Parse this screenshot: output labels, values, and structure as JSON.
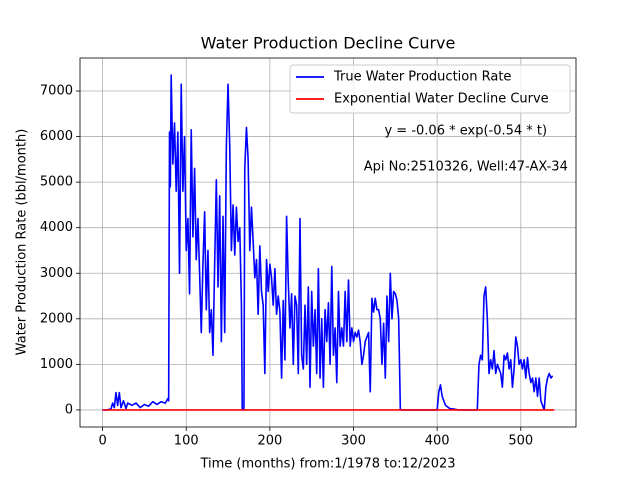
{
  "chart_data": {
    "type": "line",
    "title": "Water Production Decline Curve",
    "xlabel": "Time (months) from:1/1978 to:12/2023",
    "ylabel": "Water Production Rate (bbl/month)",
    "annotations": [
      "y = -0.06 * exp(-0.54 * t)",
      "Api No:2510326, Well:47-AX-34"
    ],
    "xlim": [
      -27,
      566
    ],
    "ylim": [
      -375,
      7725
    ],
    "xticks": [
      0,
      100,
      200,
      300,
      400,
      500
    ],
    "yticks": [
      0,
      1000,
      2000,
      3000,
      4000,
      5000,
      6000,
      7000
    ],
    "grid": true,
    "legend": "upper right",
    "series": [
      {
        "name": "True Water Production Rate",
        "color": "#0000ff",
        "x": [
          0,
          5,
          10,
          12,
          14,
          16,
          18,
          20,
          22,
          25,
          28,
          30,
          35,
          40,
          45,
          50,
          55,
          60,
          65,
          70,
          75,
          78,
          79,
          80,
          81,
          82,
          84,
          86,
          88,
          90,
          92,
          94,
          96,
          98,
          100,
          102,
          104,
          106,
          108,
          110,
          112,
          114,
          116,
          118,
          120,
          122,
          124,
          126,
          128,
          130,
          132,
          134,
          136,
          138,
          140,
          142,
          144,
          146,
          148,
          150,
          152,
          154,
          156,
          158,
          160,
          162,
          164,
          166,
          167,
          169,
          170,
          172,
          174,
          176,
          178,
          180,
          182,
          184,
          186,
          188,
          190,
          192,
          194,
          196,
          198,
          200,
          202,
          204,
          206,
          208,
          210,
          212,
          214,
          216,
          218,
          220,
          222,
          224,
          226,
          228,
          230,
          232,
          234,
          236,
          238,
          240,
          242,
          244,
          246,
          248,
          250,
          252,
          254,
          256,
          258,
          260,
          262,
          264,
          266,
          268,
          270,
          272,
          274,
          276,
          278,
          280,
          282,
          284,
          286,
          288,
          290,
          292,
          294,
          296,
          298,
          300,
          302,
          304,
          306,
          308,
          310,
          312,
          314,
          316,
          318,
          320,
          322,
          324,
          326,
          328,
          330,
          332,
          334,
          336,
          338,
          340,
          342,
          344,
          346,
          348,
          350,
          352,
          354,
          356,
          400,
          402,
          404,
          406,
          410,
          415,
          420,
          425,
          448,
          450,
          452,
          454,
          456,
          458,
          460,
          462,
          464,
          466,
          468,
          470,
          472,
          474,
          476,
          478,
          480,
          482,
          484,
          486,
          488,
          490,
          492,
          494,
          496,
          498,
          500,
          502,
          504,
          506,
          508,
          510,
          512,
          514,
          516,
          518,
          520,
          522,
          524,
          526,
          528,
          530,
          532,
          534,
          536,
          538
        ],
        "values": [
          0,
          0,
          20,
          150,
          50,
          380,
          100,
          380,
          50,
          200,
          30,
          150,
          100,
          150,
          50,
          120,
          80,
          180,
          120,
          180,
          150,
          250,
          200,
          6100,
          4900,
          7350,
          5400,
          6300,
          4800,
          6100,
          3000,
          7150,
          4800,
          6000,
          3500,
          4200,
          2550,
          6150,
          3800,
          5300,
          3300,
          4200,
          3000,
          1700,
          3200,
          4350,
          2200,
          3500,
          1700,
          2200,
          1200,
          3200,
          5050,
          2700,
          4700,
          1500,
          4250,
          1700,
          5800,
          7150,
          5800,
          3500,
          4500,
          3400,
          4450,
          3700,
          4000,
          2300,
          0,
          0,
          5300,
          6200,
          5500,
          3500,
          4450,
          3700,
          2900,
          3300,
          2100,
          3600,
          2600,
          2300,
          800,
          3300,
          2600,
          3200,
          2900,
          2300,
          3100,
          2100,
          2500,
          2150,
          700,
          2400,
          1100,
          4250,
          2800,
          1800,
          2550,
          1000,
          2500,
          2300,
          800,
          4200,
          1200,
          900,
          2300,
          1000,
          2700,
          500,
          2600,
          1400,
          2200,
          800,
          3100,
          700,
          2000,
          500,
          2200,
          1500,
          2350,
          1000,
          3150,
          1200,
          1800,
          600,
          2600,
          1400,
          1800,
          1400,
          2600,
          1500,
          2850,
          1400,
          1800,
          1500,
          1700,
          1600,
          1750,
          1500,
          1000,
          1200,
          1500,
          1600,
          1700,
          400,
          2450,
          2150,
          2450,
          2200,
          2200,
          2000,
          1000,
          1900,
          700,
          2500,
          1500,
          3000,
          2000,
          2600,
          2550,
          2400,
          2000,
          0,
          0,
          400,
          550,
          300,
          100,
          30,
          20,
          0,
          0,
          1000,
          1200,
          1100,
          2500,
          2700,
          2000,
          800,
          1100,
          900,
          1300,
          800,
          1000,
          900,
          800,
          500,
          1200,
          1100,
          1250,
          900,
          1100,
          500,
          900,
          1600,
          1400,
          1000,
          1100,
          900,
          1100,
          700,
          1150,
          800,
          600,
          700,
          400,
          700,
          300,
          700,
          200,
          100,
          0,
          500,
          700,
          800,
          700,
          750
        ]
      },
      {
        "name": "Exponential Water Decline Curve",
        "color": "#ff0000",
        "x": [
          0,
          540
        ],
        "values": [
          -0.06,
          0
        ]
      }
    ]
  }
}
